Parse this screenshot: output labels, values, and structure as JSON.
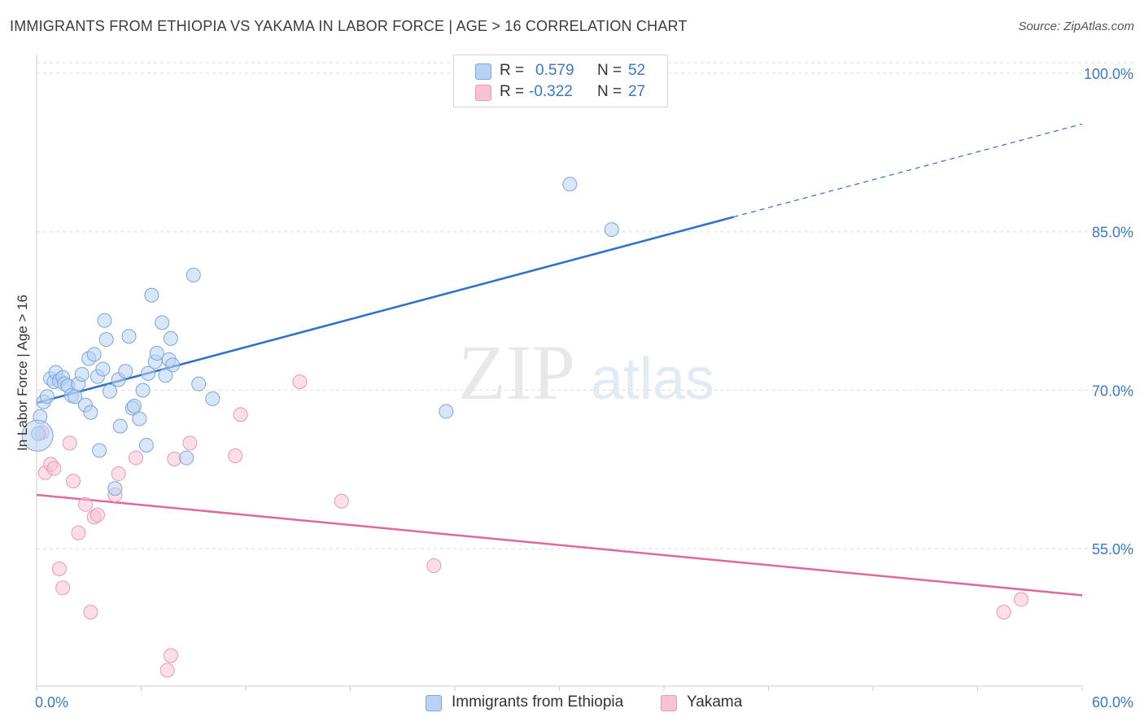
{
  "title": "IMMIGRANTS FROM ETHIOPIA VS YAKAMA IN LABOR FORCE | AGE > 16 CORRELATION CHART",
  "source": "Source: ZipAtlas.com",
  "watermark": {
    "zip": "ZIP",
    "atlas": "atlas"
  },
  "legend": {
    "rows": [
      {
        "r_label": "R =",
        "r_value": "0.579",
        "n_label": "N =",
        "n_value": "52"
      },
      {
        "r_label": "R =",
        "r_value": "-0.322",
        "n_label": "N =",
        "n_value": "27"
      }
    ]
  },
  "colors": {
    "blue_fill": "#b8d2f2",
    "blue_stroke": "#7aa6dc",
    "blue_line": "#2f6fcc",
    "pink_fill": "#f7c3d3",
    "pink_stroke": "#e79ab4",
    "pink_line": "#e0689a",
    "axis_text": "#3a78c9",
    "grid": "#dddddd"
  },
  "chart_data": {
    "type": "scatter",
    "title": "IMMIGRANTS FROM ETHIOPIA VS YAKAMA IN LABOR FORCE | AGE > 16 CORRELATION CHART",
    "xlabel": "",
    "ylabel": "In Labor Force | Age > 16",
    "xlim": [
      0,
      60
    ],
    "ylim": [
      42,
      101
    ],
    "x_tick_labels": [
      "0.0%",
      "60.0%"
    ],
    "y_ticks": [
      55,
      70,
      85,
      100
    ],
    "y_tick_labels": [
      "55.0%",
      "70.0%",
      "85.0%",
      "100.0%"
    ],
    "grid": "horizontal dashed",
    "legend_position": "top-center",
    "series": [
      {
        "name": "Immigrants from Ethiopia",
        "color": "#7aa6dc",
        "points": [
          [
            0.1,
            65.9
          ],
          [
            0.2,
            67.5
          ],
          [
            0.4,
            68.9
          ],
          [
            0.6,
            69.4
          ],
          [
            0.8,
            71.1
          ],
          [
            1.0,
            70.8
          ],
          [
            1.1,
            71.7
          ],
          [
            1.3,
            70.9
          ],
          [
            1.5,
            71.2
          ],
          [
            1.6,
            70.6
          ],
          [
            1.8,
            70.4
          ],
          [
            2.0,
            69.5
          ],
          [
            2.2,
            69.4
          ],
          [
            2.4,
            70.6
          ],
          [
            2.6,
            71.5
          ],
          [
            2.8,
            68.6
          ],
          [
            3.0,
            73.0
          ],
          [
            3.1,
            67.9
          ],
          [
            3.3,
            73.4
          ],
          [
            3.5,
            71.3
          ],
          [
            3.6,
            64.3
          ],
          [
            3.8,
            72.0
          ],
          [
            3.9,
            76.6
          ],
          [
            4.0,
            74.8
          ],
          [
            4.2,
            69.9
          ],
          [
            4.5,
            60.7
          ],
          [
            4.7,
            71.0
          ],
          [
            4.8,
            66.6
          ],
          [
            5.1,
            71.8
          ],
          [
            5.3,
            75.1
          ],
          [
            5.5,
            68.3
          ],
          [
            5.6,
            68.5
          ],
          [
            5.9,
            67.3
          ],
          [
            6.1,
            70.0
          ],
          [
            6.3,
            64.8
          ],
          [
            6.4,
            71.6
          ],
          [
            6.6,
            79.0
          ],
          [
            6.8,
            72.7
          ],
          [
            6.9,
            73.5
          ],
          [
            7.2,
            76.4
          ],
          [
            7.4,
            71.4
          ],
          [
            7.6,
            72.9
          ],
          [
            7.7,
            74.9
          ],
          [
            7.8,
            72.4
          ],
          [
            8.6,
            63.6
          ],
          [
            9.0,
            80.9
          ],
          [
            9.3,
            70.6
          ],
          [
            10.1,
            69.2
          ],
          [
            23.5,
            68.0
          ],
          [
            30.6,
            89.5
          ],
          [
            33.0,
            85.2
          ],
          [
            0.05,
            65.7
          ]
        ]
      },
      {
        "name": "Yakama",
        "color": "#e79ab4",
        "points": [
          [
            0.3,
            66.0
          ],
          [
            0.5,
            62.2
          ],
          [
            0.8,
            63.0
          ],
          [
            1.0,
            62.6
          ],
          [
            1.3,
            53.1
          ],
          [
            1.5,
            51.3
          ],
          [
            1.9,
            65.0
          ],
          [
            2.1,
            61.4
          ],
          [
            2.4,
            56.5
          ],
          [
            2.8,
            59.2
          ],
          [
            3.1,
            49.0
          ],
          [
            3.3,
            58.0
          ],
          [
            3.5,
            58.2
          ],
          [
            4.5,
            60.1
          ],
          [
            4.7,
            62.1
          ],
          [
            5.7,
            63.6
          ],
          [
            7.5,
            43.5
          ],
          [
            7.7,
            44.9
          ],
          [
            7.9,
            63.5
          ],
          [
            8.8,
            65.0
          ],
          [
            11.4,
            63.8
          ],
          [
            11.7,
            67.7
          ],
          [
            15.1,
            70.8
          ],
          [
            17.5,
            59.5
          ],
          [
            22.8,
            53.4
          ],
          [
            55.5,
            49.0
          ],
          [
            56.5,
            50.2
          ]
        ]
      }
    ],
    "trendlines": [
      {
        "series": "Immigrants from Ethiopia",
        "solid": [
          [
            0,
            68.8
          ],
          [
            40,
            86.4
          ]
        ],
        "dashed": [
          [
            40,
            86.4
          ],
          [
            60,
            95.2
          ]
        ]
      },
      {
        "series": "Yakama",
        "solid": [
          [
            0,
            60.1
          ],
          [
            60,
            50.6
          ]
        ]
      }
    ]
  },
  "bottom_legend": [
    {
      "label": "Immigrants from Ethiopia"
    },
    {
      "label": "Yakama"
    }
  ]
}
